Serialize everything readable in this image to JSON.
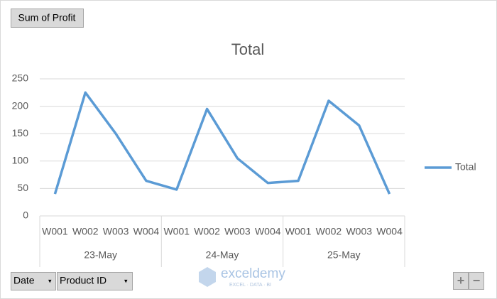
{
  "chart_data": {
    "type": "line",
    "title": "Total",
    "categories": [
      "W001",
      "W002",
      "W003",
      "W004",
      "W001",
      "W002",
      "W003",
      "W004",
      "W001",
      "W002",
      "W003",
      "W004"
    ],
    "category_groups": [
      "23-May",
      "24-May",
      "25-May"
    ],
    "series": [
      {
        "name": "Total",
        "color": "#5b9bd5",
        "values": [
          40,
          225,
          150,
          64,
          48,
          195,
          105,
          60,
          64,
          210,
          165,
          40
        ]
      }
    ],
    "ylim": [
      0,
      250
    ],
    "yticks": [
      0,
      50,
      100,
      150,
      200,
      250
    ],
    "grid": true,
    "legend": "right"
  },
  "pivot": {
    "value_field": "Sum of Profit",
    "axis_fields": [
      "Date",
      "Product ID"
    ],
    "zoom_buttons": [
      "+",
      "−"
    ]
  },
  "watermark": {
    "name": "exceldemy",
    "tagline": "EXCEL · DATA · BI"
  }
}
